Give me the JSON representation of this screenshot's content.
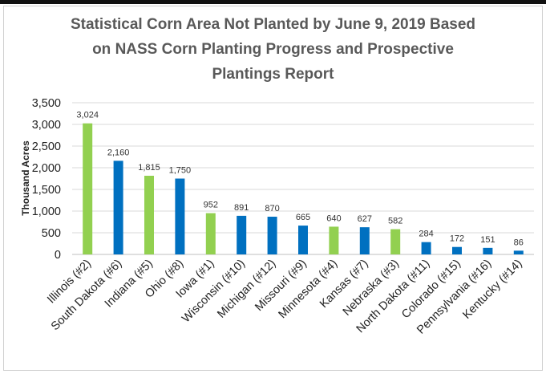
{
  "chart_data": {
    "type": "bar",
    "title_lines": [
      "Statistical Corn Area Not Planted by June 9, 2019 Based",
      "on NASS Corn Planting Progress and Prospective",
      "Plantings Report"
    ],
    "xlabel": "",
    "ylabel": "Thousand Acres",
    "ylim": [
      0,
      3500
    ],
    "yticks": [
      0,
      500,
      1000,
      1500,
      2000,
      2500,
      3000,
      3500
    ],
    "ytick_labels": [
      "0",
      "500",
      "1,000",
      "1,500",
      "2,000",
      "2,500",
      "3,000",
      "3,500"
    ],
    "grid": true,
    "legend": "none",
    "categories": [
      "Illinois (#2)",
      "South Dakota (#6)",
      "Indiana (#5)",
      "Ohio (#8)",
      "Iowa (#1)",
      "Wisconsin (#10)",
      "Michigan (#12)",
      "Missouri (#9)",
      "Minnesota (#4)",
      "Kansas (#7)",
      "Nebraska (#3)",
      "North Dakota (#11)",
      "Colorado (#15)",
      "Pennsylvania (#16)",
      "Kentucky (#14)"
    ],
    "values": [
      3024,
      2160,
      1815,
      1750,
      952,
      891,
      870,
      665,
      640,
      627,
      582,
      284,
      172,
      151,
      86
    ],
    "value_labels": [
      "3,024",
      "2,160",
      "1,815",
      "1,750",
      "952",
      "891",
      "870",
      "665",
      "640",
      "627",
      "582",
      "284",
      "172",
      "151",
      "86"
    ],
    "bar_colors": [
      "green",
      "blue",
      "green",
      "blue",
      "green",
      "blue",
      "blue",
      "blue",
      "green",
      "blue",
      "green",
      "blue",
      "blue",
      "blue",
      "blue"
    ],
    "colors": {
      "green": "#92d050",
      "blue": "#0070c0",
      "grid": "#d9d9d9",
      "axis": "#bfbfbf",
      "title": "#595959"
    }
  }
}
